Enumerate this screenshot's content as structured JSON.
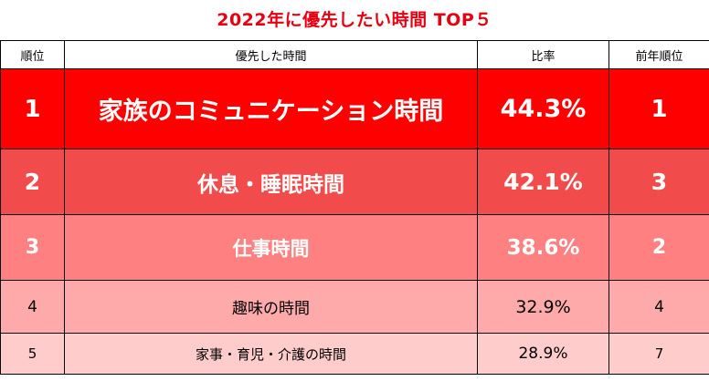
{
  "chart_data": {
    "type": "table",
    "title": "2022年に優先したい時間 TOP５",
    "columns": [
      "順位",
      "優先した時間",
      "比率",
      "前年順位"
    ],
    "rows": [
      {
        "rank": "1",
        "item": "家族のコミュニケーション時間",
        "ratio": "44.3%",
        "prev_rank": "1",
        "value": 44.3,
        "bg": "#ff0000",
        "fg": "#ffffff"
      },
      {
        "rank": "2",
        "item": "休息・睡眠時間",
        "ratio": "42.1%",
        "prev_rank": "3",
        "value": 42.1,
        "bg": "#f24b4b",
        "fg": "#ffffff"
      },
      {
        "rank": "3",
        "item": "仕事時間",
        "ratio": "38.6%",
        "prev_rank": "2",
        "value": 38.6,
        "bg": "#ff8080",
        "fg": "#ffffff"
      },
      {
        "rank": "4",
        "item": "趣味の時間",
        "ratio": "32.9%",
        "prev_rank": "4",
        "value": 32.9,
        "bg": "#ffaaaa",
        "fg": "#000000"
      },
      {
        "rank": "5",
        "item": "家事・育児・介護の時間",
        "ratio": "28.9%",
        "prev_rank": "7",
        "value": 28.9,
        "bg": "#ffcccc",
        "fg": "#000000"
      }
    ]
  },
  "colors": {
    "title": "#e60012",
    "border": "#000000"
  }
}
